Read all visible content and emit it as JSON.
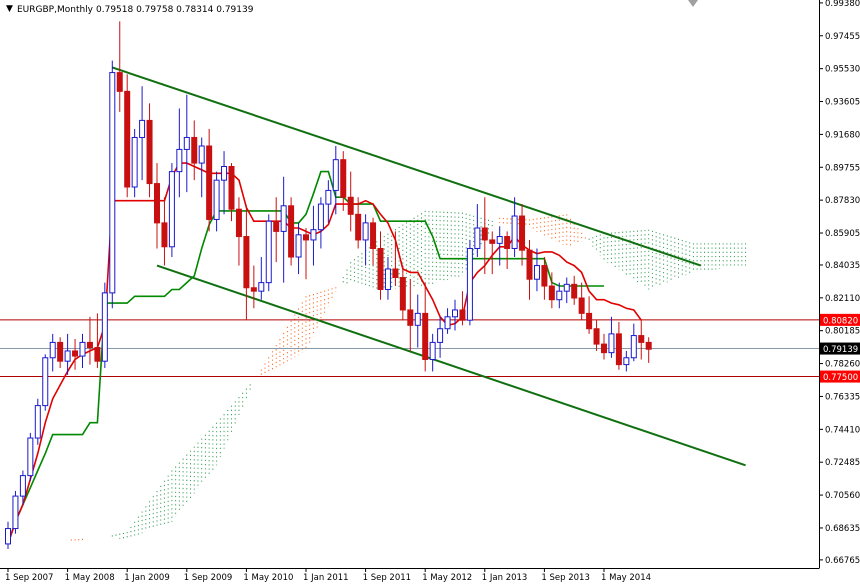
{
  "header": {
    "title": "EURGBP,Monthly",
    "quote": "0.79518 0.79758 0.78314 0.79139"
  },
  "chart_data": {
    "type": "candlestick",
    "symbol": "EURGBP",
    "timeframe": "Monthly",
    "ylim": [
      0.6629,
      0.9955
    ],
    "y_ticks": [
      "0.99380",
      "0.97455",
      "0.95530",
      "0.93605",
      "0.91680",
      "0.89755",
      "0.87830",
      "0.85905",
      "0.84035",
      "0.82110",
      "0.80185",
      "0.78260",
      "0.76335",
      "0.74410",
      "0.72485",
      "0.70560",
      "0.68635",
      "0.66765"
    ],
    "x_ticks": [
      {
        "label": "1 Sep 2007",
        "index": 0
      },
      {
        "label": "1 May 2008",
        "index": 8
      },
      {
        "label": "1 Jan 2009",
        "index": 16
      },
      {
        "label": "1 Sep 2009",
        "index": 24
      },
      {
        "label": "1 May 2010",
        "index": 32
      },
      {
        "label": "1 Jan 2011",
        "index": 40
      },
      {
        "label": "1 Sep 2011",
        "index": 48
      },
      {
        "label": "1 May 2012",
        "index": 56
      },
      {
        "label": "1 Jan 2013",
        "index": 64
      },
      {
        "label": "1 Sep 2013",
        "index": 72
      },
      {
        "label": "1 May 2014",
        "index": 80
      }
    ],
    "candles": [
      [
        0.677,
        0.69,
        0.674,
        0.686
      ],
      [
        0.686,
        0.708,
        0.683,
        0.705
      ],
      [
        0.705,
        0.72,
        0.7,
        0.717
      ],
      [
        0.717,
        0.742,
        0.714,
        0.739
      ],
      [
        0.739,
        0.762,
        0.735,
        0.758
      ],
      [
        0.758,
        0.788,
        0.755,
        0.786
      ],
      [
        0.786,
        0.8,
        0.778,
        0.795
      ],
      [
        0.795,
        0.798,
        0.78,
        0.784
      ],
      [
        0.784,
        0.8,
        0.776,
        0.79
      ],
      [
        0.79,
        0.797,
        0.779,
        0.787
      ],
      [
        0.787,
        0.8,
        0.78,
        0.795
      ],
      [
        0.795,
        0.81,
        0.782,
        0.792
      ],
      [
        0.792,
        0.812,
        0.78,
        0.784
      ],
      [
        0.784,
        0.83,
        0.78,
        0.824
      ],
      [
        0.824,
        0.96,
        0.815,
        0.953
      ],
      [
        0.953,
        0.983,
        0.93,
        0.942
      ],
      [
        0.942,
        0.952,
        0.88,
        0.886
      ],
      [
        0.886,
        0.92,
        0.88,
        0.915
      ],
      [
        0.915,
        0.945,
        0.89,
        0.925
      ],
      [
        0.925,
        0.935,
        0.88,
        0.888
      ],
      [
        0.888,
        0.9,
        0.85,
        0.865
      ],
      [
        0.865,
        0.88,
        0.84,
        0.851
      ],
      [
        0.851,
        0.9,
        0.845,
        0.895
      ],
      [
        0.895,
        0.932,
        0.88,
        0.908
      ],
      [
        0.908,
        0.94,
        0.883,
        0.915
      ],
      [
        0.915,
        0.925,
        0.89,
        0.9
      ],
      [
        0.9,
        0.915,
        0.88,
        0.91
      ],
      [
        0.91,
        0.92,
        0.86,
        0.867
      ],
      [
        0.867,
        0.895,
        0.86,
        0.89
      ],
      [
        0.89,
        0.907,
        0.87,
        0.898
      ],
      [
        0.898,
        0.9,
        0.866,
        0.873
      ],
      [
        0.873,
        0.88,
        0.84,
        0.857
      ],
      [
        0.857,
        0.875,
        0.808,
        0.827
      ],
      [
        0.827,
        0.84,
        0.815,
        0.825
      ],
      [
        0.825,
        0.845,
        0.82,
        0.83
      ],
      [
        0.83,
        0.87,
        0.825,
        0.866
      ],
      [
        0.866,
        0.88,
        0.842,
        0.86
      ],
      [
        0.86,
        0.892,
        0.83,
        0.875
      ],
      [
        0.875,
        0.88,
        0.84,
        0.845
      ],
      [
        0.845,
        0.865,
        0.835,
        0.858
      ],
      [
        0.858,
        0.862,
        0.832,
        0.855
      ],
      [
        0.855,
        0.875,
        0.84,
        0.861
      ],
      [
        0.861,
        0.88,
        0.85,
        0.876
      ],
      [
        0.876,
        0.89,
        0.865,
        0.884
      ],
      [
        0.884,
        0.91,
        0.87,
        0.902
      ],
      [
        0.902,
        0.907,
        0.872,
        0.88
      ],
      [
        0.88,
        0.895,
        0.86,
        0.87
      ],
      [
        0.87,
        0.88,
        0.85,
        0.855
      ],
      [
        0.855,
        0.87,
        0.84,
        0.865
      ],
      [
        0.865,
        0.868,
        0.84,
        0.85
      ],
      [
        0.85,
        0.86,
        0.82,
        0.826
      ],
      [
        0.826,
        0.845,
        0.82,
        0.838
      ],
      [
        0.838,
        0.86,
        0.828,
        0.833
      ],
      [
        0.833,
        0.84,
        0.808,
        0.814
      ],
      [
        0.814,
        0.832,
        0.79,
        0.805
      ],
      [
        0.805,
        0.823,
        0.792,
        0.812
      ],
      [
        0.812,
        0.83,
        0.778,
        0.785
      ],
      [
        0.785,
        0.8,
        0.778,
        0.795
      ],
      [
        0.795,
        0.81,
        0.786,
        0.803
      ],
      [
        0.803,
        0.815,
        0.8,
        0.81
      ],
      [
        0.81,
        0.82,
        0.802,
        0.814
      ],
      [
        0.814,
        0.825,
        0.805,
        0.808
      ],
      [
        0.808,
        0.855,
        0.805,
        0.85
      ],
      [
        0.85,
        0.876,
        0.845,
        0.862
      ],
      [
        0.862,
        0.88,
        0.835,
        0.855
      ],
      [
        0.855,
        0.86,
        0.835,
        0.853
      ],
      [
        0.853,
        0.863,
        0.84,
        0.857
      ],
      [
        0.857,
        0.86,
        0.838,
        0.85
      ],
      [
        0.85,
        0.88,
        0.845,
        0.869
      ],
      [
        0.869,
        0.876,
        0.84,
        0.849
      ],
      [
        0.849,
        0.855,
        0.82,
        0.832
      ],
      [
        0.832,
        0.85,
        0.825,
        0.84
      ],
      [
        0.84,
        0.845,
        0.82,
        0.828
      ],
      [
        0.828,
        0.836,
        0.815,
        0.82
      ],
      [
        0.82,
        0.83,
        0.815,
        0.825
      ],
      [
        0.825,
        0.833,
        0.818,
        0.829
      ],
      [
        0.829,
        0.834,
        0.817,
        0.821
      ],
      [
        0.821,
        0.83,
        0.808,
        0.812
      ],
      [
        0.812,
        0.822,
        0.8,
        0.803
      ],
      [
        0.803,
        0.808,
        0.79,
        0.794
      ],
      [
        0.794,
        0.8,
        0.785,
        0.789
      ],
      [
        0.789,
        0.81,
        0.786,
        0.8
      ],
      [
        0.8,
        0.807,
        0.779,
        0.782
      ],
      [
        0.782,
        0.79,
        0.778,
        0.786
      ],
      [
        0.786,
        0.806,
        0.784,
        0.799
      ],
      [
        0.799,
        0.808,
        0.785,
        0.795
      ],
      [
        0.795,
        0.798,
        0.783,
        0.791
      ]
    ],
    "tenkan": [
      0.677,
      0.69,
      0.7,
      0.715,
      0.73,
      0.748,
      0.762,
      0.77,
      0.778,
      0.785,
      0.788,
      0.79,
      0.792,
      0.805,
      0.878,
      0.878,
      0.878,
      0.878,
      0.878,
      0.878,
      0.878,
      0.878,
      0.892,
      0.9,
      0.9,
      0.898,
      0.896,
      0.894,
      0.894,
      0.894,
      0.894,
      0.89,
      0.874,
      0.866,
      0.866,
      0.866,
      0.866,
      0.866,
      0.862,
      0.862,
      0.86,
      0.858,
      0.86,
      0.864,
      0.876,
      0.876,
      0.876,
      0.876,
      0.878,
      0.876,
      0.87,
      0.865,
      0.855,
      0.838,
      0.836,
      0.836,
      0.828,
      0.82,
      0.81,
      0.805,
      0.806,
      0.81,
      0.83,
      0.836,
      0.84,
      0.846,
      0.851,
      0.851,
      0.857,
      0.852,
      0.849,
      0.847,
      0.848,
      0.848,
      0.846,
      0.842,
      0.84,
      0.836,
      0.825,
      0.82,
      0.82,
      0.818,
      0.817,
      0.815,
      0.814,
      0.808
    ],
    "kijun": [
      0.677,
      0.69,
      0.7,
      0.71,
      0.72,
      0.73,
      0.741,
      0.741,
      0.741,
      0.741,
      0.741,
      0.748,
      0.748,
      0.818,
      0.818,
      0.818,
      0.818,
      0.822,
      0.822,
      0.822,
      0.822,
      0.822,
      0.826,
      0.826,
      0.83,
      0.834,
      0.85,
      0.864,
      0.872,
      0.872,
      0.872,
      0.872,
      0.872,
      0.872,
      0.872,
      0.872,
      0.872,
      0.872,
      0.865,
      0.865,
      0.87,
      0.882,
      0.895,
      0.895,
      0.88,
      0.88,
      0.876,
      0.876,
      0.876,
      0.876,
      0.866,
      0.866,
      0.866,
      0.866,
      0.866,
      0.866,
      0.866,
      0.857,
      0.844,
      0.844,
      0.844,
      0.844,
      0.844,
      0.844,
      0.844,
      0.844,
      0.844,
      0.844,
      0.844,
      0.844,
      0.844,
      0.844,
      0.844,
      0.83,
      0.828,
      0.828,
      0.828,
      0.828,
      0.828,
      0.828,
      0.828
    ],
    "span_a": [
      [
        0,
        0.677
      ],
      [
        3,
        0.677
      ],
      [
        6,
        0.678
      ],
      [
        10,
        0.678
      ],
      [
        16,
        0.684
      ],
      [
        22,
        0.72
      ],
      [
        28,
        0.748
      ],
      [
        33,
        0.773
      ],
      [
        40,
        0.79
      ],
      [
        46,
        0.842
      ],
      [
        50,
        0.856
      ],
      [
        56,
        0.872
      ],
      [
        61,
        0.871
      ],
      [
        66,
        0.865
      ],
      [
        70,
        0.862
      ],
      [
        75,
        0.851
      ],
      [
        80,
        0.859
      ],
      [
        86,
        0.861
      ],
      [
        92,
        0.853
      ],
      [
        99,
        0.853
      ]
    ],
    "span_b": [
      [
        0,
        0.677
      ],
      [
        3,
        0.677
      ],
      [
        6,
        0.679
      ],
      [
        10,
        0.68
      ],
      [
        16,
        0.68
      ],
      [
        22,
        0.69
      ],
      [
        28,
        0.723
      ],
      [
        33,
        0.772
      ],
      [
        40,
        0.822
      ],
      [
        46,
        0.83
      ],
      [
        50,
        0.826
      ],
      [
        56,
        0.828
      ],
      [
        61,
        0.834
      ],
      [
        66,
        0.868
      ],
      [
        70,
        0.867
      ],
      [
        75,
        0.87
      ],
      [
        80,
        0.843
      ],
      [
        86,
        0.826
      ],
      [
        92,
        0.836
      ],
      [
        99,
        0.84
      ]
    ],
    "trendlines": [
      {
        "from": [
          14,
          0.956
        ],
        "to": [
          93,
          0.84
        ]
      },
      {
        "from": [
          20,
          0.84
        ],
        "to": [
          99,
          0.723
        ]
      }
    ],
    "levels": [
      {
        "value": 0.8082,
        "label": "0.80820",
        "line": "#b00000",
        "badge_bg": "#ff0000",
        "badge_fg": "#ffffff"
      },
      {
        "value": 0.7914,
        "label": "0.79139",
        "line": "#8899aa",
        "badge_bg": "#000000",
        "badge_fg": "#ffffff"
      },
      {
        "value": 0.775,
        "label": "0.77500",
        "line": "#b00000",
        "badge_bg": "#ff0000",
        "badge_fg": "#ffffff"
      }
    ],
    "colors": {
      "bull": "#1a1acd",
      "bear": "#c81010",
      "tenkan": "#e00000",
      "kijun": "#008800",
      "cloud_bull": "#3aa05a",
      "cloud_bear": "#ff6a22",
      "trend": "#107010",
      "grid": "#000000"
    }
  }
}
